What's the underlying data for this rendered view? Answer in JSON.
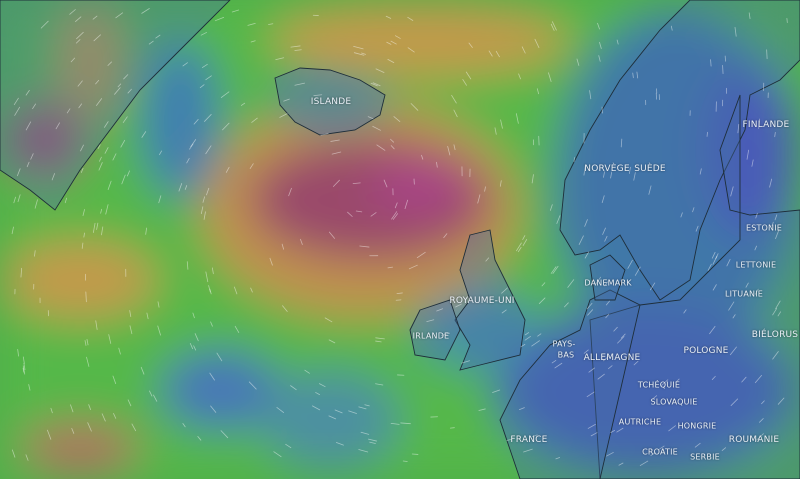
{
  "map": {
    "layer": "wind",
    "colors": {
      "calm": "#3f62b8",
      "low": "#3d8fa8",
      "moderate": "#55c04a",
      "strong": "#c29a4c",
      "very_strong": "#9a3f6a",
      "extreme": "#b0468e"
    },
    "labels": [
      {
        "id": "islande",
        "text": "ISLANDE"
      },
      {
        "id": "norvege",
        "text": "NORVÈGE"
      },
      {
        "id": "suede",
        "text": "SUÈDE"
      },
      {
        "id": "finlande",
        "text": "FINLANDE"
      },
      {
        "id": "estonie",
        "text": "ESTONIE"
      },
      {
        "id": "lettonie",
        "text": "LETTONIE"
      },
      {
        "id": "lituanie",
        "text": "LITUANIE"
      },
      {
        "id": "bielorus",
        "text": "BIÉLORUS"
      },
      {
        "id": "danemark",
        "text": "DANEMARK"
      },
      {
        "id": "royaume-uni",
        "text": "ROYAUME-UNI"
      },
      {
        "id": "irlande",
        "text": "IRLANDE"
      },
      {
        "id": "pays-bas-1",
        "text": "PAYS-"
      },
      {
        "id": "pays-bas-2",
        "text": "BAS"
      },
      {
        "id": "allemagne",
        "text": "ALLEMAGNE"
      },
      {
        "id": "pologne",
        "text": "POLOGNE"
      },
      {
        "id": "tchequie",
        "text": "TCHÉQUIE"
      },
      {
        "id": "slovaquie",
        "text": "SLOVAQUIE"
      },
      {
        "id": "autriche",
        "text": "AUTRICHE"
      },
      {
        "id": "hongrie",
        "text": "HONGRIE"
      },
      {
        "id": "roumanie",
        "text": "ROUMANIE"
      },
      {
        "id": "france",
        "text": "FRANCE"
      },
      {
        "id": "croatie",
        "text": "CROATIE"
      },
      {
        "id": "serbie",
        "text": "SERBIE"
      }
    ]
  }
}
